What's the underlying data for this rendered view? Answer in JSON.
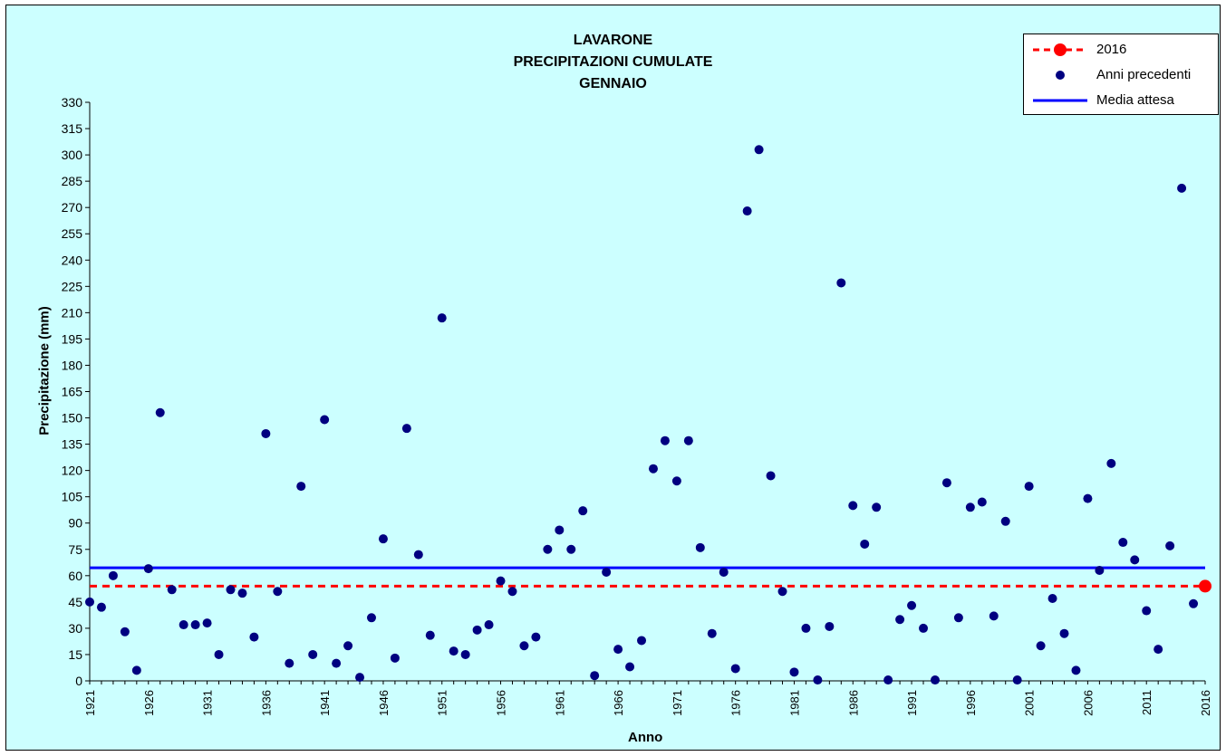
{
  "chart_data": {
    "type": "scatter",
    "title_lines": [
      "LAVARONE",
      "PRECIPITAZIONI CUMULATE",
      "GENNAIO"
    ],
    "xlabel": "Anno",
    "ylabel": "Precipitazione (mm)",
    "xlim": [
      1921,
      2016
    ],
    "ylim": [
      0,
      330
    ],
    "ytick_step": 15,
    "xtick_step": 5,
    "grid": false,
    "legend_position": "top-right",
    "colors": {
      "current": "#ff0000",
      "previous": "#000080",
      "mean": "#0000ff",
      "background": "#ccffff"
    },
    "series": [
      {
        "name": "Anni precedenti",
        "kind": "points",
        "x": [
          1921,
          1922,
          1923,
          1924,
          1925,
          1926,
          1927,
          1928,
          1929,
          1930,
          1931,
          1932,
          1933,
          1934,
          1935,
          1936,
          1937,
          1938,
          1939,
          1940,
          1941,
          1942,
          1943,
          1944,
          1945,
          1946,
          1947,
          1948,
          1949,
          1950,
          1951,
          1952,
          1953,
          1954,
          1955,
          1956,
          1957,
          1958,
          1959,
          1960,
          1961,
          1962,
          1963,
          1964,
          1965,
          1966,
          1967,
          1968,
          1969,
          1970,
          1971,
          1972,
          1973,
          1974,
          1975,
          1976,
          1977,
          1978,
          1979,
          1980,
          1981,
          1982,
          1983,
          1984,
          1985,
          1986,
          1987,
          1988,
          1989,
          1990,
          1991,
          1992,
          1993,
          1994,
          1995,
          1996,
          1997,
          1998,
          1999,
          2000,
          2001,
          2002,
          2003,
          2004,
          2005,
          2006,
          2007,
          2008,
          2009,
          2010,
          2011,
          2012,
          2013,
          2014,
          2015
        ],
        "y": [
          45,
          42,
          60,
          28,
          6,
          64,
          153,
          52,
          32,
          32,
          33,
          15,
          52,
          50,
          25,
          141,
          51,
          10,
          111,
          15,
          149,
          10,
          20,
          2,
          36,
          81,
          13,
          144,
          72,
          26,
          207,
          17,
          15,
          29,
          32,
          57,
          51,
          20,
          25,
          75,
          86,
          75,
          97,
          3,
          62,
          18,
          8,
          23,
          121,
          137,
          114,
          137,
          76,
          27,
          62,
          7,
          268,
          303,
          117,
          51,
          5,
          30,
          0.5,
          31,
          227,
          100,
          78,
          99,
          0.5,
          35,
          43,
          30,
          0.5,
          113,
          36,
          99,
          102,
          37,
          91,
          0.5,
          111,
          20,
          47,
          27,
          6,
          104,
          63,
          124,
          79,
          69,
          40,
          18,
          77,
          281,
          44
        ]
      },
      {
        "name": "2016",
        "kind": "current",
        "x": [
          2016
        ],
        "y": [
          54
        ]
      },
      {
        "name": "Media attesa",
        "kind": "hline",
        "y": 64.5
      }
    ],
    "reference_2016_line": 54
  }
}
